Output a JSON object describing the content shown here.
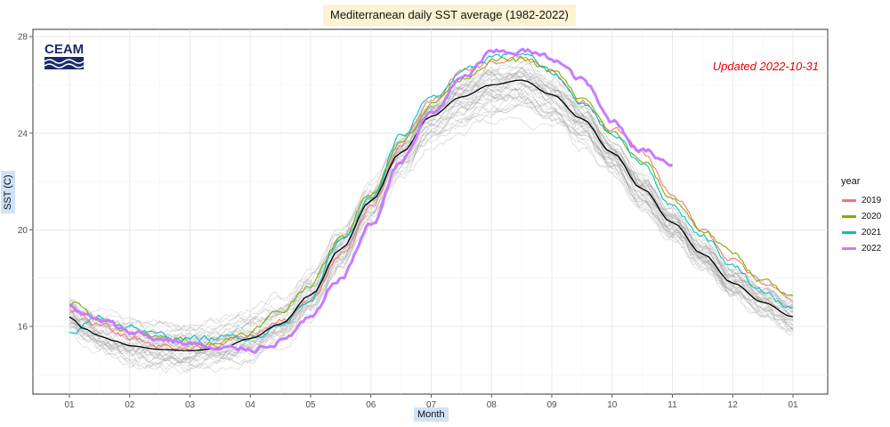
{
  "title": "Mediterranean daily SST average (1982-2022)",
  "updated": "Updated 2022-10-31",
  "logo_text": "CEAM",
  "chart_data": {
    "type": "line",
    "title": "Mediterranean daily SST average (1982-2022)",
    "xlabel": "Month",
    "ylabel": "SST (C)",
    "x_ticks": [
      "01",
      "02",
      "03",
      "04",
      "05",
      "06",
      "07",
      "08",
      "09",
      "10",
      "11",
      "12",
      "01"
    ],
    "y_ticks": [
      16,
      20,
      24,
      28
    ],
    "xlim": [
      0,
      12
    ],
    "ylim": [
      13.2,
      28.3
    ],
    "grid": true,
    "legend": {
      "title": "year",
      "position": "right",
      "entries": [
        {
          "name": "2019",
          "color": "#f8766d"
        },
        {
          "name": "2020",
          "color": "#7cae00"
        },
        {
          "name": "2021",
          "color": "#00bfc4"
        },
        {
          "name": "2022",
          "color": "#c77cff"
        }
      ]
    },
    "series": [
      {
        "name": "climatology mean",
        "color": "#000000",
        "x": [
          0,
          0.25,
          0.5,
          0.75,
          1,
          1.5,
          2,
          2.5,
          3,
          3.5,
          4,
          4.5,
          5,
          5.5,
          6,
          6.5,
          7,
          7.5,
          8,
          8.5,
          9,
          9.5,
          10,
          10.5,
          11,
          11.5,
          12
        ],
        "y": [
          16.4,
          15.9,
          15.6,
          15.4,
          15.2,
          15.05,
          15.0,
          15.1,
          15.5,
          16.1,
          17.3,
          19.2,
          21.2,
          23.2,
          24.7,
          25.5,
          26.0,
          26.2,
          25.6,
          24.6,
          23.2,
          21.7,
          20.3,
          19.0,
          17.8,
          17.0,
          16.4
        ]
      },
      {
        "name": "2019",
        "color": "#f8766d",
        "x": [
          0,
          0.5,
          1,
          1.5,
          2,
          2.5,
          3,
          3.5,
          4,
          4.5,
          5,
          5.5,
          6,
          6.5,
          7,
          7.5,
          8,
          8.5,
          9,
          9.5,
          10,
          10.5,
          11,
          11.5,
          12
        ],
        "y": [
          16.8,
          16.0,
          15.5,
          15.2,
          15.1,
          15.3,
          15.6,
          16.2,
          17.0,
          19.0,
          21.0,
          23.5,
          25.3,
          26.5,
          26.9,
          27.1,
          26.5,
          25.3,
          24.2,
          23.2,
          21.5,
          20.0,
          18.8,
          17.8,
          17.0
        ]
      },
      {
        "name": "2020",
        "color": "#7cae00",
        "x": [
          0,
          0.5,
          1,
          1.5,
          2,
          2.5,
          3,
          3.5,
          4,
          4.5,
          5,
          5.5,
          6,
          6.5,
          7,
          7.5,
          8,
          8.5,
          9,
          9.5,
          10,
          10.5,
          11,
          11.5,
          12
        ],
        "y": [
          17.0,
          16.3,
          15.8,
          15.5,
          15.4,
          15.4,
          15.8,
          16.6,
          17.8,
          19.6,
          21.6,
          23.6,
          25.2,
          26.3,
          27.0,
          27.0,
          26.6,
          25.4,
          24.0,
          22.8,
          21.3,
          20.0,
          19.0,
          17.9,
          17.1
        ]
      },
      {
        "name": "2021",
        "color": "#00bfc4",
        "x": [
          0,
          0.5,
          1,
          1.5,
          2,
          2.5,
          3,
          3.5,
          4,
          4.5,
          5,
          5.5,
          6,
          6.5,
          7,
          7.5,
          8,
          8.5,
          9,
          9.5,
          10,
          10.5,
          11,
          11.5,
          12
        ],
        "y": [
          15.7,
          16.4,
          16.0,
          15.6,
          15.5,
          15.5,
          15.6,
          16.0,
          17.2,
          19.6,
          21.3,
          23.9,
          25.4,
          26.4,
          27.2,
          27.3,
          26.5,
          25.3,
          24.0,
          22.8,
          21.0,
          19.8,
          18.5,
          17.5,
          16.7
        ]
      },
      {
        "name": "2022",
        "color": "#c77cff",
        "x": [
          0,
          0.5,
          1,
          1.5,
          2,
          2.5,
          3,
          3.5,
          4,
          4.5,
          5,
          5.5,
          6,
          6.5,
          7,
          7.5,
          8,
          8.5,
          9,
          9.5,
          10
        ],
        "y": [
          16.8,
          16.2,
          15.8,
          15.5,
          15.3,
          15.0,
          15.1,
          15.4,
          16.3,
          18.0,
          20.2,
          22.9,
          24.8,
          26.2,
          27.3,
          27.4,
          27.1,
          26.2,
          24.5,
          23.3,
          22.8
        ]
      }
    ]
  }
}
